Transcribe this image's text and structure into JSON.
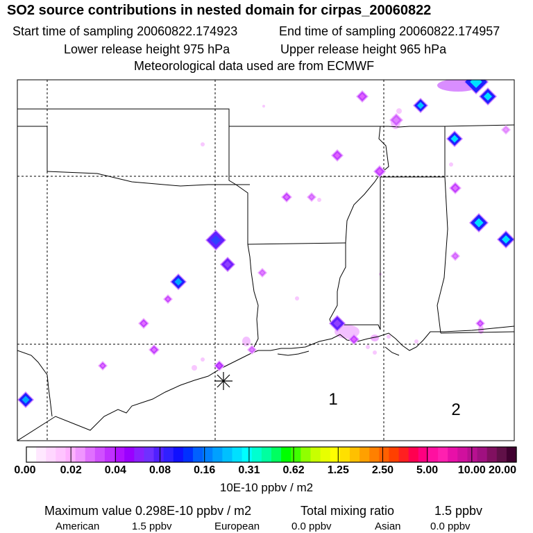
{
  "header": {
    "title": "SO2 source contributions in nested domain for cirpas_20060822",
    "start_time": "Start time of sampling 20060822.174923",
    "end_time": "End time of sampling 20060822.174957",
    "lower_height": "Lower release height  975 hPa",
    "upper_height": "Upper release height  965 hPa",
    "met_data": "Meteorological data used are from ECMWF"
  },
  "map": {
    "region_labels": [
      "1",
      "2"
    ],
    "receptor_marker": "receptor-star"
  },
  "colorbar": {
    "tick_labels": [
      "0.00",
      "0.02",
      "0.04",
      "0.08",
      "0.16",
      "0.31",
      "0.62",
      "1.25",
      "2.50",
      "5.00",
      "10.00",
      "20.00"
    ],
    "units": "10E-10 ppbv / m2",
    "colors": [
      "#ffffff",
      "#ffe8ff",
      "#ffd6ff",
      "#ffc4ff",
      "#ffb0ff",
      "#f096ff",
      "#e070ff",
      "#d050ff",
      "#c030ff",
      "#b010ff",
      "#9a00ff",
      "#8a20ff",
      "#7030ff",
      "#5020ff",
      "#3020ff",
      "#1010ff",
      "#0030ff",
      "#0060ff",
      "#0080ff",
      "#00a0ff",
      "#00c0ff",
      "#00e0ff",
      "#00ffff",
      "#00ffd0",
      "#00ffa0",
      "#00ff60",
      "#00ff00",
      "#40ff00",
      "#90ff00",
      "#c8ff00",
      "#e8ff00",
      "#ffff00",
      "#ffe000",
      "#ffc000",
      "#ffa000",
      "#ff8000",
      "#ff6000",
      "#ff4000",
      "#ff2020",
      "#ff0050",
      "#ff0080",
      "#ff10a0",
      "#ff20b0",
      "#e810a8",
      "#d0109e",
      "#b81090",
      "#a01080",
      "#801060",
      "#601048",
      "#400030"
    ]
  },
  "footer": {
    "max_value": "Maximum value  0.298E-10 ppbv / m2",
    "total_mixing_ratio_label": "Total mixing ratio",
    "total_mixing_ratio_value": "1.5 ppbv",
    "american_label": "American",
    "american_value": "1.5 ppbv",
    "european_label": "European",
    "european_value": "0.0 ppbv",
    "asian_label": "Asian",
    "asian_value": "0.0 ppbv"
  }
}
